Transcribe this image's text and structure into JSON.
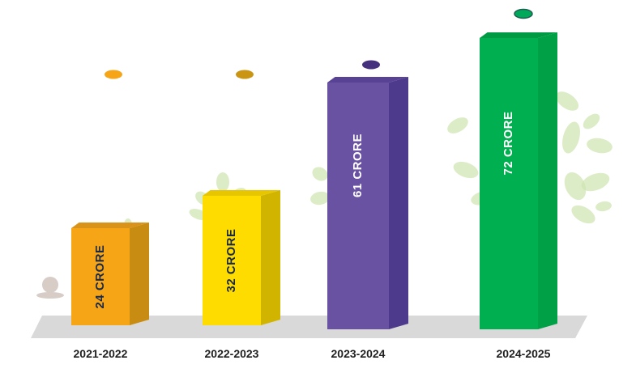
{
  "chart_data": {
    "type": "bar",
    "categories": [
      "2021-2022",
      "2022-2023",
      "2023-2024",
      "2024-2025"
    ],
    "values": [
      24,
      32,
      61,
      72
    ],
    "data_labels": [
      "24 CRORE",
      "32 CRORE",
      "61 CRORE",
      "72 CRORE"
    ],
    "unit": "CRORE",
    "title": "",
    "xlabel": "",
    "ylabel": "",
    "grid": false,
    "style": "3d-columns",
    "colors": {
      "front": [
        "#f5a516",
        "#ffdc00",
        "#6a52a3",
        "#00b050"
      ],
      "side": [
        "#c88c12",
        "#d1b400",
        "#4d3a8c",
        "#00a047"
      ],
      "top": [
        "#d9931a",
        "#e7c600",
        "#574294",
        "#009a44"
      ],
      "label_text": [
        "#1c2a4a",
        "#1c2a4a",
        "#ffffff",
        "#ffffff"
      ],
      "marker": [
        "#f5a516",
        "#c99513",
        "#46317f",
        "#00a85a"
      ],
      "floor": "#d9d9d9",
      "leaves": "#cfe6b3"
    }
  }
}
